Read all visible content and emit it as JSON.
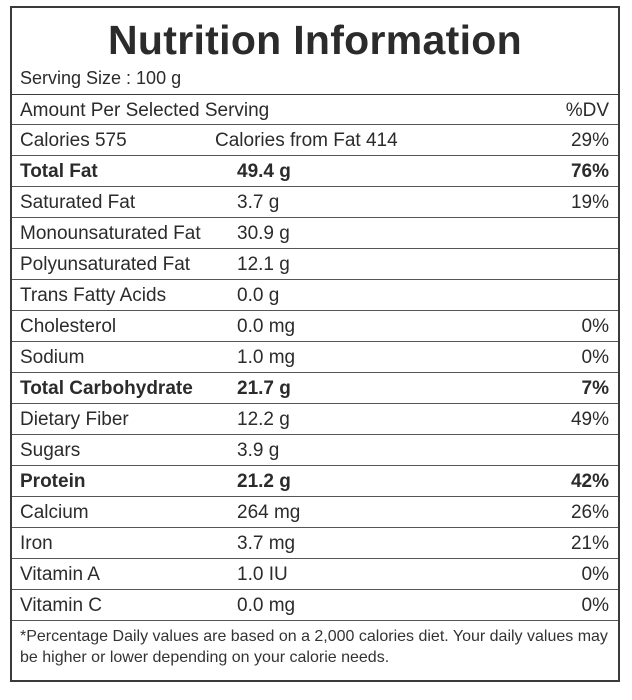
{
  "title": "Nutrition Information",
  "serving_size": "Serving Size : 100 g",
  "header": {
    "label": "Amount Per Selected Serving",
    "dv": "%DV"
  },
  "calories": {
    "label": "Calories 575",
    "from_fat": "Calories from Fat 414",
    "dv": "29%"
  },
  "nutrients": [
    {
      "name": "Total Fat",
      "amount": "49.4 g",
      "dv": "76%",
      "bold": true
    },
    {
      "name": "Saturated Fat",
      "amount": "3.7 g",
      "dv": "19%",
      "bold": false
    },
    {
      "name": "Monounsaturated Fat",
      "amount": "30.9 g",
      "dv": "",
      "bold": false
    },
    {
      "name": "Polyunsaturated Fat",
      "amount": "12.1 g",
      "dv": "",
      "bold": false
    },
    {
      "name": "Trans Fatty Acids",
      "amount": "0.0 g",
      "dv": "",
      "bold": false
    },
    {
      "name": "Cholesterol",
      "amount": "0.0 mg",
      "dv": "0%",
      "bold": false
    },
    {
      "name": "Sodium",
      "amount": "1.0 mg",
      "dv": "0%",
      "bold": false
    },
    {
      "name": "Total Carbohydrate",
      "amount": "21.7 g",
      "dv": "7%",
      "bold": true
    },
    {
      "name": "Dietary Fiber",
      "amount": "12.2 g",
      "dv": "49%",
      "bold": false
    },
    {
      "name": "Sugars",
      "amount": "3.9 g",
      "dv": "",
      "bold": false
    },
    {
      "name": "Protein",
      "amount": "21.2 g",
      "dv": "42%",
      "bold": true
    },
    {
      "name": "Calcium",
      "amount": "264 mg",
      "dv": "26%",
      "bold": false
    },
    {
      "name": "Iron",
      "amount": "3.7 mg",
      "dv": "21%",
      "bold": false
    },
    {
      "name": "Vitamin A",
      "amount": "1.0 IU",
      "dv": "0%",
      "bold": false
    },
    {
      "name": "Vitamin C",
      "amount": "0.0 mg",
      "dv": "0%",
      "bold": false
    }
  ],
  "footnote": "*Percentage Daily values are based on a 2,000 calories diet. Your daily values may be higher or lower depending on your calorie needs."
}
